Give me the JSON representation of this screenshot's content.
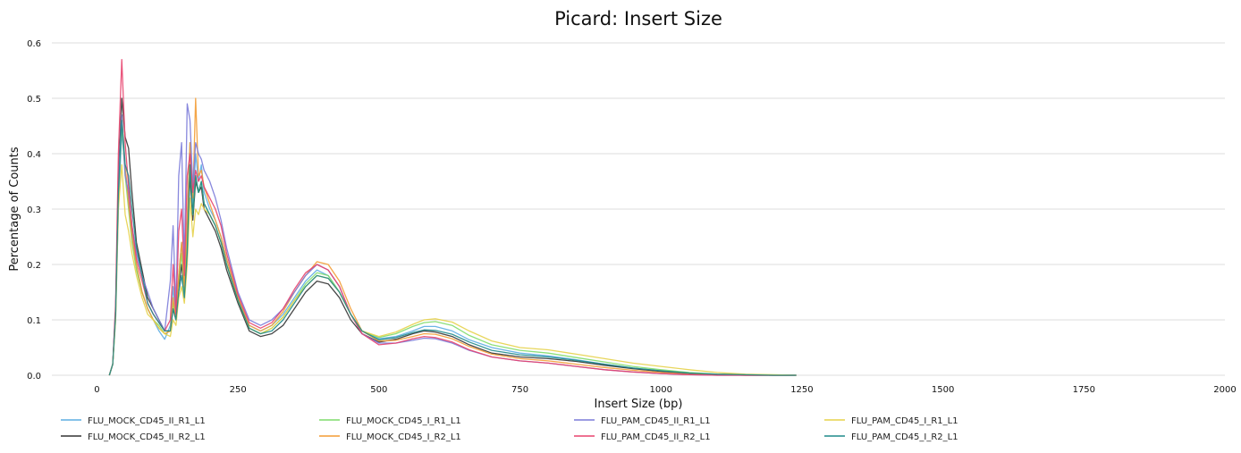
{
  "chart_data": {
    "type": "line",
    "title": "Picard: Insert Size",
    "xlabel": "Insert Size (bp)",
    "ylabel": "Percentage of Counts",
    "xlim": [
      -80,
      2000
    ],
    "ylim": [
      0,
      0.6
    ],
    "xticks": [
      0,
      250,
      500,
      750,
      1000,
      1250,
      1500,
      1750,
      2000
    ],
    "yticks": [
      0.0,
      0.1,
      0.2,
      0.3,
      0.4,
      0.5,
      0.6
    ],
    "xtick_labels": [
      "0",
      "250",
      "500",
      "750",
      "1000",
      "1250",
      "1500",
      "1750",
      "2000"
    ],
    "ytick_labels": [
      "0.0",
      "0.1",
      "0.2",
      "0.3",
      "0.4",
      "0.5",
      "0.6"
    ],
    "grid": "horizontal",
    "legend_position": "bottom",
    "series": [
      {
        "name": "FLU_MOCK_CD45_II_R1_L1",
        "color": "#5dade2",
        "x": [
          22,
          28,
          33,
          38,
          44,
          50,
          56,
          62,
          70,
          80,
          90,
          100,
          110,
          120,
          130,
          135,
          140,
          145,
          150,
          155,
          160,
          165,
          170,
          175,
          180,
          185,
          190,
          200,
          210,
          220,
          230,
          250,
          270,
          290,
          310,
          330,
          350,
          370,
          390,
          410,
          430,
          450,
          470,
          500,
          530,
          560,
          580,
          600,
          630,
          660,
          700,
          750,
          800,
          850,
          900,
          950,
          1000,
          1050,
          1100,
          1150,
          1200,
          1240
        ],
        "y": [
          0.0,
          0.02,
          0.1,
          0.3,
          0.44,
          0.37,
          0.32,
          0.26,
          0.2,
          0.15,
          0.12,
          0.1,
          0.08,
          0.065,
          0.09,
          0.16,
          0.1,
          0.18,
          0.24,
          0.16,
          0.28,
          0.42,
          0.3,
          0.4,
          0.35,
          0.38,
          0.33,
          0.3,
          0.28,
          0.25,
          0.21,
          0.14,
          0.09,
          0.08,
          0.09,
          0.11,
          0.14,
          0.17,
          0.19,
          0.18,
          0.15,
          0.11,
          0.08,
          0.066,
          0.07,
          0.08,
          0.088,
          0.088,
          0.08,
          0.064,
          0.05,
          0.04,
          0.035,
          0.028,
          0.02,
          0.013,
          0.008,
          0.004,
          0.002,
          0.001,
          0.0,
          0.0
        ]
      },
      {
        "name": "FLU_MOCK_CD45_II_R2_L1",
        "color": "#333333",
        "x": [
          22,
          28,
          33,
          38,
          44,
          50,
          56,
          62,
          70,
          80,
          90,
          100,
          110,
          120,
          130,
          135,
          140,
          145,
          150,
          155,
          160,
          165,
          170,
          175,
          180,
          185,
          190,
          200,
          210,
          220,
          230,
          250,
          270,
          290,
          310,
          330,
          350,
          370,
          390,
          410,
          430,
          450,
          470,
          500,
          530,
          560,
          580,
          600,
          630,
          660,
          700,
          750,
          800,
          850,
          900,
          950,
          1000,
          1050,
          1100,
          1150,
          1200,
          1240
        ],
        "y": [
          0.0,
          0.02,
          0.12,
          0.36,
          0.5,
          0.43,
          0.41,
          0.33,
          0.24,
          0.19,
          0.14,
          0.12,
          0.1,
          0.08,
          0.08,
          0.12,
          0.1,
          0.16,
          0.2,
          0.15,
          0.24,
          0.36,
          0.28,
          0.35,
          0.33,
          0.34,
          0.3,
          0.28,
          0.26,
          0.23,
          0.19,
          0.13,
          0.08,
          0.07,
          0.075,
          0.09,
          0.12,
          0.15,
          0.17,
          0.165,
          0.14,
          0.1,
          0.075,
          0.06,
          0.065,
          0.075,
          0.08,
          0.078,
          0.07,
          0.055,
          0.04,
          0.033,
          0.03,
          0.025,
          0.018,
          0.012,
          0.007,
          0.003,
          0.001,
          0.0,
          0.0,
          0.0
        ]
      },
      {
        "name": "FLU_MOCK_CD45_I_R1_L1",
        "color": "#7fdc6c",
        "x": [
          22,
          28,
          33,
          38,
          44,
          50,
          56,
          62,
          70,
          80,
          90,
          100,
          110,
          120,
          130,
          135,
          140,
          145,
          150,
          155,
          160,
          165,
          170,
          175,
          180,
          185,
          190,
          200,
          210,
          220,
          230,
          250,
          270,
          290,
          310,
          330,
          350,
          370,
          390,
          410,
          430,
          450,
          470,
          500,
          530,
          560,
          580,
          600,
          630,
          660,
          700,
          750,
          800,
          850,
          900,
          950,
          1000,
          1050,
          1100,
          1150,
          1200,
          1240
        ],
        "y": [
          0.0,
          0.02,
          0.11,
          0.33,
          0.45,
          0.36,
          0.3,
          0.24,
          0.19,
          0.15,
          0.12,
          0.1,
          0.09,
          0.075,
          0.08,
          0.13,
          0.1,
          0.17,
          0.22,
          0.15,
          0.25,
          0.38,
          0.29,
          0.36,
          0.33,
          0.35,
          0.31,
          0.29,
          0.27,
          0.24,
          0.2,
          0.135,
          0.085,
          0.075,
          0.085,
          0.105,
          0.135,
          0.165,
          0.185,
          0.18,
          0.15,
          0.11,
          0.08,
          0.068,
          0.075,
          0.088,
          0.095,
          0.097,
          0.09,
          0.072,
          0.055,
          0.045,
          0.04,
          0.032,
          0.024,
          0.016,
          0.01,
          0.005,
          0.002,
          0.001,
          0.0,
          0.0
        ]
      },
      {
        "name": "FLU_MOCK_CD45_I_R2_L1",
        "color": "#f39c34",
        "x": [
          22,
          28,
          33,
          38,
          44,
          50,
          56,
          62,
          70,
          80,
          90,
          100,
          110,
          120,
          130,
          135,
          140,
          145,
          150,
          155,
          160,
          165,
          170,
          175,
          180,
          185,
          190,
          200,
          210,
          220,
          230,
          250,
          270,
          290,
          310,
          330,
          350,
          370,
          390,
          410,
          430,
          450,
          470,
          500,
          530,
          560,
          580,
          600,
          630,
          660,
          700,
          750,
          800,
          850,
          900,
          950,
          1000,
          1050,
          1100,
          1150,
          1200,
          1240
        ],
        "y": [
          0.0,
          0.02,
          0.11,
          0.34,
          0.47,
          0.38,
          0.31,
          0.25,
          0.2,
          0.15,
          0.12,
          0.1,
          0.085,
          0.075,
          0.08,
          0.14,
          0.1,
          0.18,
          0.24,
          0.16,
          0.28,
          0.42,
          0.32,
          0.5,
          0.36,
          0.37,
          0.34,
          0.31,
          0.28,
          0.25,
          0.21,
          0.14,
          0.09,
          0.08,
          0.09,
          0.115,
          0.15,
          0.18,
          0.205,
          0.2,
          0.17,
          0.12,
          0.08,
          0.062,
          0.063,
          0.07,
          0.075,
          0.074,
          0.066,
          0.052,
          0.038,
          0.03,
          0.026,
          0.02,
          0.014,
          0.009,
          0.005,
          0.002,
          0.001,
          0.0,
          0.0,
          0.0
        ]
      },
      {
        "name": "FLU_PAM_CD45_II_R1_L1",
        "color": "#7b7bd9",
        "x": [
          22,
          28,
          33,
          38,
          44,
          50,
          56,
          62,
          70,
          80,
          90,
          100,
          110,
          120,
          130,
          135,
          140,
          145,
          150,
          155,
          160,
          165,
          170,
          175,
          180,
          185,
          190,
          200,
          210,
          220,
          230,
          250,
          270,
          290,
          310,
          330,
          350,
          370,
          390,
          410,
          430,
          450,
          470,
          500,
          530,
          560,
          580,
          600,
          630,
          660,
          700,
          750,
          800,
          850,
          900,
          950,
          1000,
          1050,
          1100,
          1150,
          1200,
          1240
        ],
        "y": [
          0.0,
          0.02,
          0.12,
          0.35,
          0.47,
          0.36,
          0.33,
          0.27,
          0.22,
          0.18,
          0.15,
          0.12,
          0.1,
          0.08,
          0.17,
          0.27,
          0.12,
          0.36,
          0.42,
          0.2,
          0.49,
          0.46,
          0.34,
          0.42,
          0.4,
          0.39,
          0.37,
          0.35,
          0.32,
          0.28,
          0.23,
          0.15,
          0.1,
          0.09,
          0.1,
          0.12,
          0.15,
          0.18,
          0.2,
          0.19,
          0.16,
          0.11,
          0.075,
          0.058,
          0.058,
          0.063,
          0.067,
          0.066,
          0.058,
          0.045,
          0.033,
          0.026,
          0.022,
          0.016,
          0.01,
          0.006,
          0.003,
          0.001,
          0.0,
          0.0,
          0.0,
          0.0
        ]
      },
      {
        "name": "FLU_PAM_CD45_II_R2_L1",
        "color": "#e8436e",
        "x": [
          22,
          28,
          33,
          38,
          44,
          50,
          56,
          62,
          70,
          80,
          90,
          100,
          110,
          120,
          130,
          135,
          140,
          145,
          150,
          155,
          160,
          165,
          170,
          175,
          180,
          185,
          190,
          200,
          210,
          220,
          230,
          250,
          270,
          290,
          310,
          330,
          350,
          370,
          390,
          410,
          430,
          450,
          470,
          500,
          530,
          560,
          580,
          600,
          630,
          660,
          700,
          750,
          800,
          850,
          900,
          950,
          1000,
          1050,
          1100,
          1150,
          1200,
          1240
        ],
        "y": [
          0.0,
          0.02,
          0.13,
          0.4,
          0.57,
          0.42,
          0.34,
          0.27,
          0.21,
          0.17,
          0.13,
          0.11,
          0.095,
          0.08,
          0.1,
          0.2,
          0.11,
          0.26,
          0.3,
          0.18,
          0.36,
          0.4,
          0.33,
          0.37,
          0.35,
          0.36,
          0.34,
          0.32,
          0.3,
          0.27,
          0.22,
          0.145,
          0.095,
          0.085,
          0.095,
          0.12,
          0.155,
          0.185,
          0.2,
          0.19,
          0.16,
          0.11,
          0.075,
          0.055,
          0.058,
          0.066,
          0.07,
          0.068,
          0.06,
          0.046,
          0.033,
          0.026,
          0.022,
          0.016,
          0.01,
          0.006,
          0.003,
          0.001,
          0.0,
          0.0,
          0.0,
          0.0
        ]
      },
      {
        "name": "FLU_PAM_CD45_I_R1_L1",
        "color": "#e5d24a",
        "x": [
          22,
          28,
          33,
          38,
          44,
          50,
          56,
          62,
          70,
          80,
          90,
          100,
          110,
          120,
          130,
          135,
          140,
          145,
          150,
          155,
          160,
          165,
          170,
          175,
          180,
          185,
          190,
          200,
          210,
          220,
          230,
          250,
          270,
          290,
          310,
          330,
          350,
          370,
          390,
          410,
          430,
          450,
          470,
          500,
          530,
          560,
          580,
          600,
          630,
          660,
          700,
          750,
          800,
          850,
          900,
          950,
          1000,
          1050,
          1100,
          1150,
          1200,
          1240
        ],
        "y": [
          0.0,
          0.02,
          0.1,
          0.3,
          0.38,
          0.29,
          0.26,
          0.22,
          0.18,
          0.14,
          0.11,
          0.1,
          0.085,
          0.075,
          0.07,
          0.1,
          0.09,
          0.14,
          0.16,
          0.13,
          0.2,
          0.32,
          0.25,
          0.3,
          0.29,
          0.31,
          0.3,
          0.29,
          0.27,
          0.24,
          0.2,
          0.135,
          0.085,
          0.075,
          0.085,
          0.105,
          0.135,
          0.16,
          0.18,
          0.175,
          0.15,
          0.11,
          0.08,
          0.07,
          0.078,
          0.092,
          0.1,
          0.102,
          0.096,
          0.08,
          0.062,
          0.05,
          0.046,
          0.038,
          0.03,
          0.022,
          0.016,
          0.01,
          0.005,
          0.002,
          0.001,
          0.0
        ]
      },
      {
        "name": "FLU_PAM_CD45_I_R2_L1",
        "color": "#1f8a8a",
        "x": [
          22,
          28,
          33,
          38,
          44,
          50,
          56,
          62,
          70,
          80,
          90,
          100,
          110,
          120,
          130,
          135,
          140,
          145,
          150,
          155,
          160,
          165,
          170,
          175,
          180,
          185,
          190,
          200,
          210,
          220,
          230,
          250,
          270,
          290,
          310,
          330,
          350,
          370,
          390,
          410,
          430,
          450,
          470,
          500,
          530,
          560,
          580,
          600,
          630,
          660,
          700,
          750,
          800,
          850,
          900,
          950,
          1000,
          1050,
          1100,
          1150,
          1200,
          1240
        ],
        "y": [
          0.0,
          0.02,
          0.11,
          0.33,
          0.46,
          0.38,
          0.36,
          0.3,
          0.23,
          0.18,
          0.13,
          0.11,
          0.095,
          0.08,
          0.08,
          0.12,
          0.1,
          0.15,
          0.18,
          0.14,
          0.22,
          0.38,
          0.29,
          0.36,
          0.33,
          0.35,
          0.31,
          0.29,
          0.27,
          0.24,
          0.2,
          0.135,
          0.085,
          0.075,
          0.08,
          0.1,
          0.13,
          0.16,
          0.18,
          0.175,
          0.15,
          0.11,
          0.08,
          0.064,
          0.068,
          0.077,
          0.082,
          0.081,
          0.074,
          0.06,
          0.045,
          0.037,
          0.033,
          0.027,
          0.02,
          0.013,
          0.008,
          0.004,
          0.002,
          0.001,
          0.0,
          0.0
        ]
      }
    ]
  }
}
